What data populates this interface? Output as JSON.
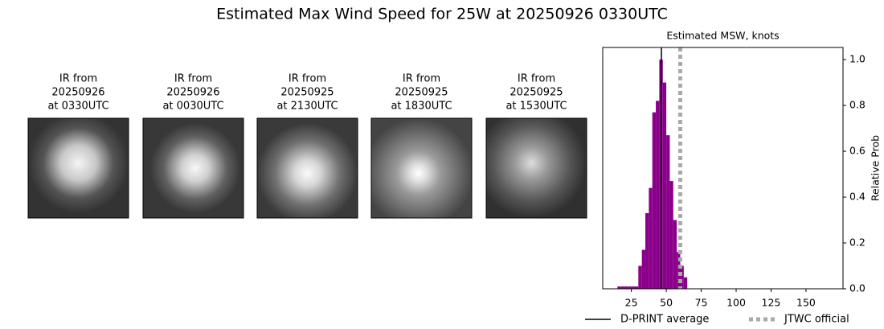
{
  "title": "Estimated Max Wind Speed for 25W at 20250926 0330UTC",
  "panels": [
    {
      "lines": [
        "IR from",
        "20250926",
        "at 0330UTC"
      ]
    },
    {
      "lines": [
        "IR from",
        "20250926",
        "at 0030UTC"
      ]
    },
    {
      "lines": [
        "IR from",
        "20250925",
        "at 2130UTC"
      ]
    },
    {
      "lines": [
        "IR from",
        "20250925",
        "at 1830UTC"
      ]
    },
    {
      "lines": [
        "IR from",
        "20250925",
        "at 1530UTC"
      ]
    }
  ],
  "chart_data": {
    "type": "histogram",
    "title": "Estimated MSW, knots",
    "ylabel": "Relative Prob",
    "bins": [
      15,
      17.5,
      20,
      22.5,
      25,
      27.5,
      30,
      32.5,
      35,
      37.5,
      40,
      42.5,
      45,
      47.5,
      50,
      52.5,
      55,
      57.5,
      60,
      62.5,
      65
    ],
    "values": [
      0.01,
      0.01,
      0.01,
      0.01,
      0.01,
      0.01,
      0.1,
      0.17,
      0.33,
      0.44,
      0.77,
      0.82,
      1.0,
      0.9,
      0.67,
      0.47,
      0.3,
      0.16,
      0.1,
      0.05
    ],
    "color": "#8b008b",
    "xlim": [
      4.5,
      176.5
    ],
    "ylim": [
      0,
      1.053
    ],
    "xticks": [
      25,
      50,
      75,
      100,
      125,
      150
    ],
    "yticks": [
      {
        "value": 0,
        "label": "0.0"
      },
      0.2,
      0.4,
      0.6,
      0.8,
      {
        "value": 1,
        "label": "1.0"
      }
    ],
    "lines": [
      {
        "name": "D-PRINT average",
        "value": 46.5,
        "color": "#000000",
        "style": "solid"
      },
      {
        "name": "JTWC official",
        "value": 60,
        "color": "#a9a9a9",
        "style": "dotted"
      }
    ]
  }
}
